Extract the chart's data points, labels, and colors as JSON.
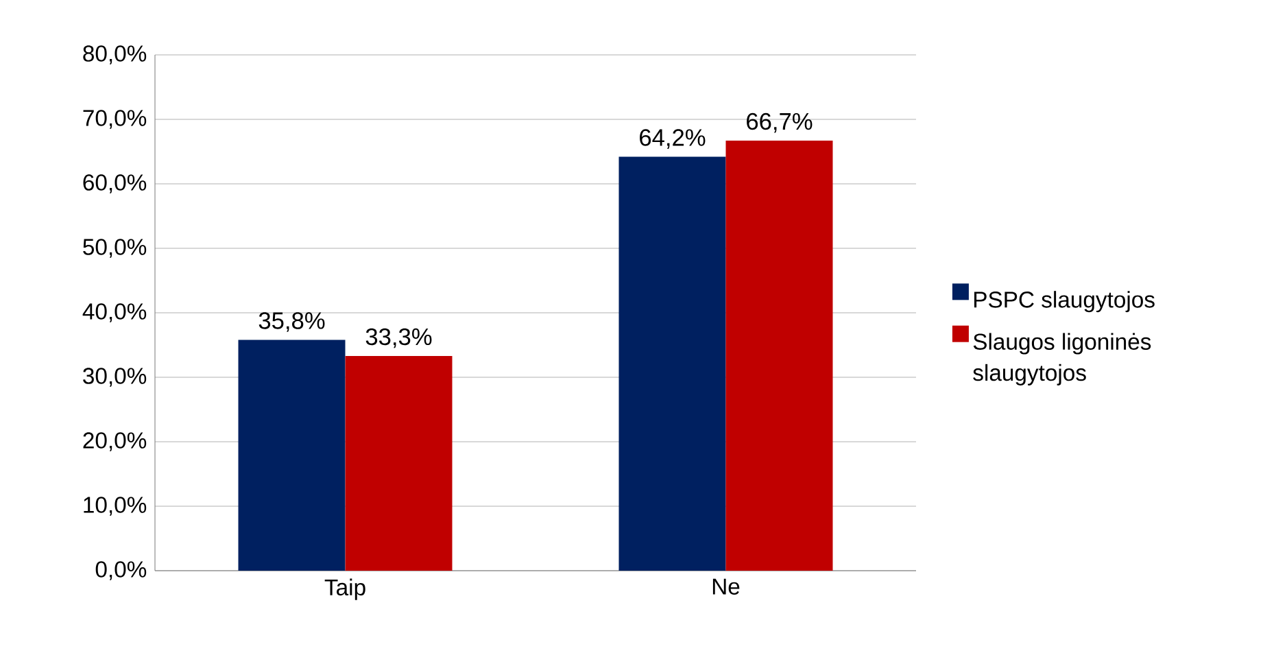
{
  "chart_data": {
    "type": "bar",
    "categories": [
      "Taip",
      "Ne"
    ],
    "series": [
      {
        "name": "PSPC slaugytojos",
        "color": "#002060",
        "values": [
          35.8,
          64.2
        ],
        "value_labels": [
          "35,8%",
          "64,2%"
        ]
      },
      {
        "name": "Slaugos ligoninės slaugytojos",
        "color": "#c00000",
        "values": [
          33.3,
          66.7
        ],
        "value_labels": [
          "33,3%",
          "66,7%"
        ]
      }
    ],
    "ylim": [
      0,
      80
    ],
    "yticks": [
      {
        "value": 0,
        "label": "0,0%"
      },
      {
        "value": 10,
        "label": "10,0%"
      },
      {
        "value": 20,
        "label": "20,0%"
      },
      {
        "value": 30,
        "label": "30,0%"
      },
      {
        "value": 40,
        "label": "40,0%"
      },
      {
        "value": 50,
        "label": "50,0%"
      },
      {
        "value": 60,
        "label": "60,0%"
      },
      {
        "value": 70,
        "label": "70,0%"
      },
      {
        "value": 80,
        "label": "80,0%"
      }
    ],
    "grid": "y",
    "legend": "right"
  }
}
